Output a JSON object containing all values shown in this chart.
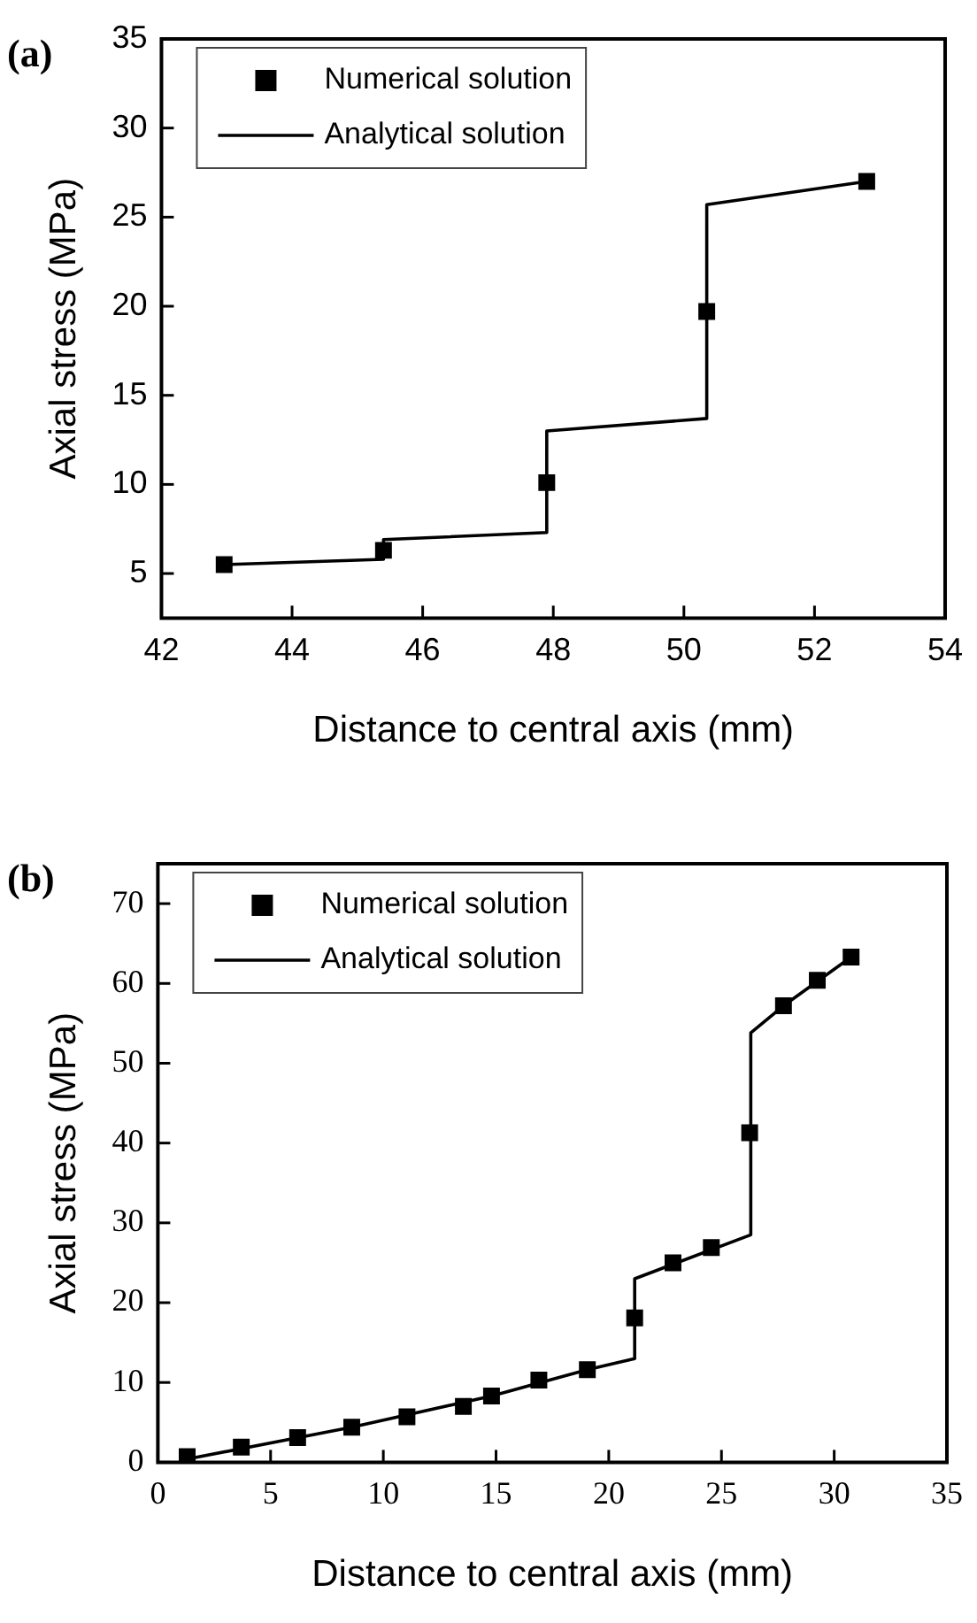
{
  "chart_data": [
    {
      "type": "scatter",
      "title": "(a)",
      "xlabel": "Distance to central axis (mm)",
      "ylabel": "Axial stress (MPa)",
      "xlim": [
        42,
        54
      ],
      "xticks": [
        42,
        44,
        46,
        48,
        50,
        52,
        54
      ],
      "ylim": [
        2.5,
        35
      ],
      "yticks": [
        5,
        10,
        15,
        20,
        25,
        30,
        35
      ],
      "grid": false,
      "legend": "top left",
      "series": [
        {
          "name": "Numerical solution",
          "type": "scatter",
          "color": "#000000",
          "marker": "square",
          "x": [
            42.96,
            45.4,
            47.9,
            50.35,
            52.8
          ],
          "values": [
            5.5,
            6.3,
            10.1,
            19.7,
            27.0
          ]
        },
        {
          "name": "Analytical solution",
          "type": "line",
          "color": "#000000",
          "marker": "none",
          "line_style": "solid",
          "x": [
            42.96,
            45.4,
            45.4,
            47.9,
            47.9,
            50.35,
            50.35,
            52.8
          ],
          "values": [
            5.5,
            5.8,
            6.9,
            7.3,
            13.0,
            13.7,
            25.7,
            27.0
          ]
        }
      ]
    },
    {
      "type": "scatter",
      "title": "(b)",
      "xlabel": "Distance to central axis (mm)",
      "ylabel": "Axial stress (MPa)",
      "xlim": [
        0,
        35
      ],
      "xticks": [
        0,
        5,
        10,
        15,
        20,
        25,
        30,
        35
      ],
      "ylim": [
        0,
        75
      ],
      "yticks": [
        0,
        10,
        20,
        30,
        40,
        50,
        60,
        70
      ],
      "grid": false,
      "legend": "top left",
      "series": [
        {
          "name": "Numerical solution",
          "type": "scatter",
          "color": "#000000",
          "marker": "square",
          "x": [
            1.3,
            3.7,
            6.2,
            8.6,
            11.05,
            13.55,
            14.8,
            16.9,
            19.05,
            21.15,
            22.85,
            24.55,
            26.25,
            27.75,
            29.25,
            30.75
          ],
          "values": [
            0.7,
            1.9,
            3.1,
            4.4,
            5.7,
            7.0,
            8.3,
            10.3,
            11.6,
            18.1,
            25.0,
            26.9,
            41.3,
            57.2,
            60.4,
            63.3
          ]
        },
        {
          "name": "Analytical solution",
          "type": "line",
          "color": "#000000",
          "marker": "none",
          "line_style": "solid",
          "x": [
            1.3,
            8.6,
            14.8,
            19.05,
            21.15,
            21.15,
            26.3,
            26.3,
            27.75,
            30.75
          ],
          "values": [
            0.4,
            4.4,
            8.3,
            11.6,
            13.0,
            23.0,
            28.5,
            53.8,
            57.2,
            63.3
          ]
        }
      ]
    }
  ]
}
